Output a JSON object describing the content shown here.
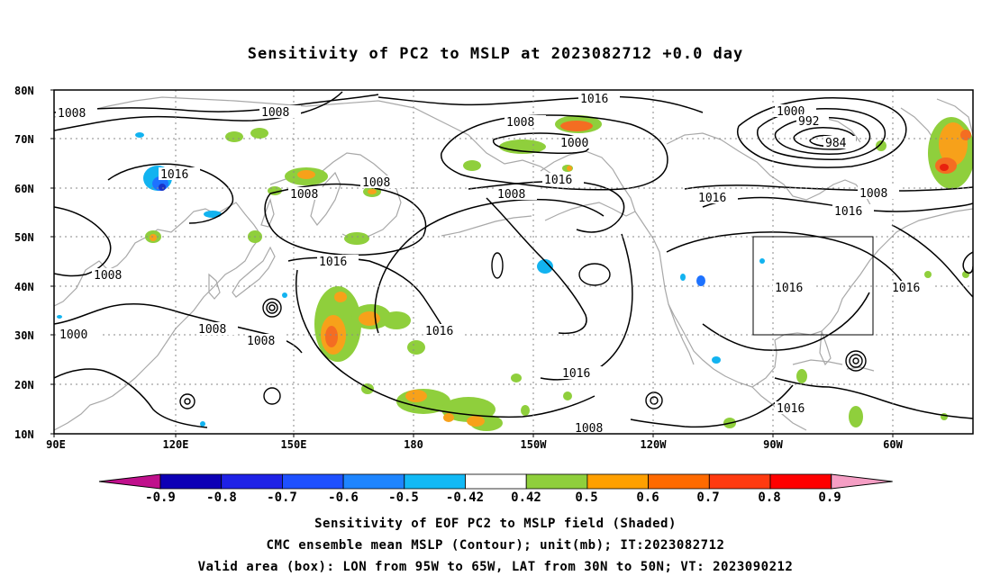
{
  "title": "Sensitivity of PC2 to MSLP at 2023082712 +0.0 day",
  "map": {
    "lat_labels": [
      "80N",
      "70N",
      "60N",
      "50N",
      "40N",
      "30N",
      "20N",
      "10N"
    ],
    "lon_labels": [
      "90E",
      "120E",
      "150E",
      "180",
      "150W",
      "120W",
      "90W",
      "60W"
    ],
    "valid_box_label": "Valid area (box)",
    "contour_labels": [
      "1008",
      "1008",
      "1016",
      "1008",
      "1008",
      "1008",
      "1000",
      "1008",
      "1008",
      "1016",
      "1008",
      "1000",
      "1016",
      "1008",
      "1016",
      "1016",
      "1016",
      "1016",
      "1000",
      "992",
      "984",
      "1008",
      "1016",
      "1016",
      "1016",
      "1016",
      "1008"
    ],
    "colors": {
      "contour": "#000000",
      "coast": "#a8a8a8",
      "grid": "#888888",
      "green": "#8fcf3c",
      "orange": "#f7a11a",
      "darkorange": "#f46d22",
      "red": "#e8220e",
      "blue": "#1e72ff",
      "lightblue": "#12b3f0",
      "darkblue": "#1933c7"
    }
  },
  "colorbar": {
    "labels": [
      "-0.9",
      "-0.8",
      "-0.7",
      "-0.6",
      "-0.5",
      "-0.42",
      "0.42",
      "0.5",
      "0.6",
      "0.7",
      "0.8",
      "0.9"
    ],
    "colors": [
      "#c0108c",
      "#0d00b5",
      "#1f22e6",
      "#1e50ff",
      "#1e85ff",
      "#12b9f5",
      "#ffffff",
      "#8fcf3c",
      "#ffa000",
      "#ff6a00",
      "#ff3a10",
      "#ff0000",
      "#f59ec4"
    ]
  },
  "captions": {
    "line1": "Sensitivity of EOF PC2 to MSLP field (Shaded)",
    "line2": "CMC ensemble mean MSLP (Contour); unit(mb); IT:2023082712",
    "line3": "Valid area (box): LON from 95W to 65W, LAT from 30N to 50N; VT: 2023090212"
  }
}
